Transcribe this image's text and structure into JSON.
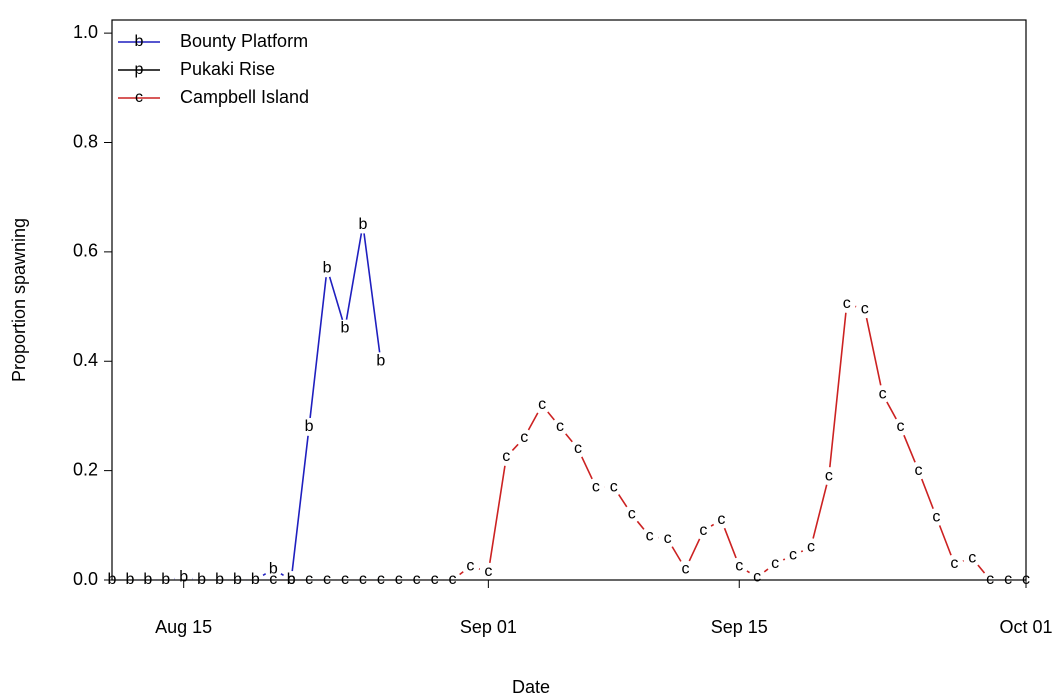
{
  "chart_data": {
    "type": "line",
    "x_label": "Date",
    "y_label": "Proportion spawning",
    "x": [
      "Aug 11",
      "Aug 12",
      "Aug 13",
      "Aug 14",
      "Aug 15",
      "Aug 16",
      "Aug 17",
      "Aug 18",
      "Aug 19",
      "Aug 20",
      "Aug 21",
      "Aug 22",
      "Aug 23",
      "Aug 24",
      "Aug 25",
      "Aug 26",
      "Aug 27",
      "Aug 28",
      "Aug 29",
      "Aug 30",
      "Aug 31",
      "Sep 01",
      "Sep 02",
      "Sep 03",
      "Sep 04",
      "Sep 05",
      "Sep 06",
      "Sep 07",
      "Sep 08",
      "Sep 09",
      "Sep 10",
      "Sep 11",
      "Sep 12",
      "Sep 13",
      "Sep 14",
      "Sep 15",
      "Sep 16",
      "Sep 17",
      "Sep 18",
      "Sep 19",
      "Sep 20",
      "Sep 21",
      "Sep 22",
      "Sep 23",
      "Sep 24",
      "Sep 25",
      "Sep 26",
      "Sep 27",
      "Sep 28",
      "Sep 29",
      "Sep 30",
      "Oct 01"
    ],
    "series": [
      {
        "name": "Bounty Platform",
        "symbol": "b",
        "color": "#1f1fbf",
        "values": [
          0,
          0,
          0,
          0,
          0.005,
          0,
          0,
          0,
          0,
          0.02,
          0,
          0.28,
          0.57,
          0.46,
          0.65,
          0.4,
          null,
          null,
          null,
          null,
          null,
          null,
          null,
          null,
          null,
          null,
          null,
          null,
          null,
          null,
          null,
          null,
          null,
          null,
          null,
          null,
          null,
          null,
          null,
          null,
          null,
          null,
          null,
          null,
          null,
          null,
          null,
          null,
          null,
          null,
          null,
          null
        ]
      },
      {
        "name": "Pukaki Rise",
        "symbol": "p",
        "color": "#000000",
        "values": [
          null,
          null,
          null,
          null,
          null,
          null,
          null,
          null,
          null,
          null,
          null,
          null,
          null,
          null,
          null,
          null,
          null,
          null,
          null,
          null,
          null,
          null,
          null,
          null,
          null,
          null,
          null,
          null,
          null,
          null,
          null,
          null,
          null,
          null,
          null,
          null,
          null,
          null,
          null,
          null,
          null,
          null,
          null,
          null,
          null,
          null,
          null,
          null,
          null,
          null,
          null,
          null
        ]
      },
      {
        "name": "Campbell Island",
        "symbol": "c",
        "color": "#cc2222",
        "values": [
          null,
          null,
          null,
          null,
          null,
          null,
          null,
          null,
          null,
          0,
          0,
          0,
          0,
          0,
          0,
          0,
          0,
          0,
          0,
          0,
          0.025,
          0.015,
          0.225,
          0.26,
          0.32,
          0.28,
          0.24,
          0.17,
          0.17,
          0.12,
          0.08,
          0.075,
          0.02,
          0.09,
          0.11,
          0.025,
          0.005,
          0.03,
          0.045,
          0.06,
          0.19,
          0.505,
          0.495,
          0.34,
          0.28,
          0.2,
          0.115,
          0.03,
          0.04,
          0,
          0,
          0
        ]
      }
    ],
    "xlim": [
      "Aug 11",
      "Oct 01"
    ],
    "xticks": [
      "Aug 15",
      "Sep 01",
      "Sep 15",
      "Oct 01"
    ],
    "ylim": [
      0,
      1.024
    ],
    "yticks": [
      {
        "value": 0,
        "label": "0.0"
      },
      {
        "value": 0.2,
        "label": "0.2"
      },
      {
        "value": 0.4,
        "label": "0.4"
      },
      {
        "value": 0.6,
        "label": "0.6"
      },
      {
        "value": 0.8,
        "label": "0.8"
      },
      {
        "value": 1,
        "label": "1.0"
      }
    ],
    "legend": "top-left"
  }
}
